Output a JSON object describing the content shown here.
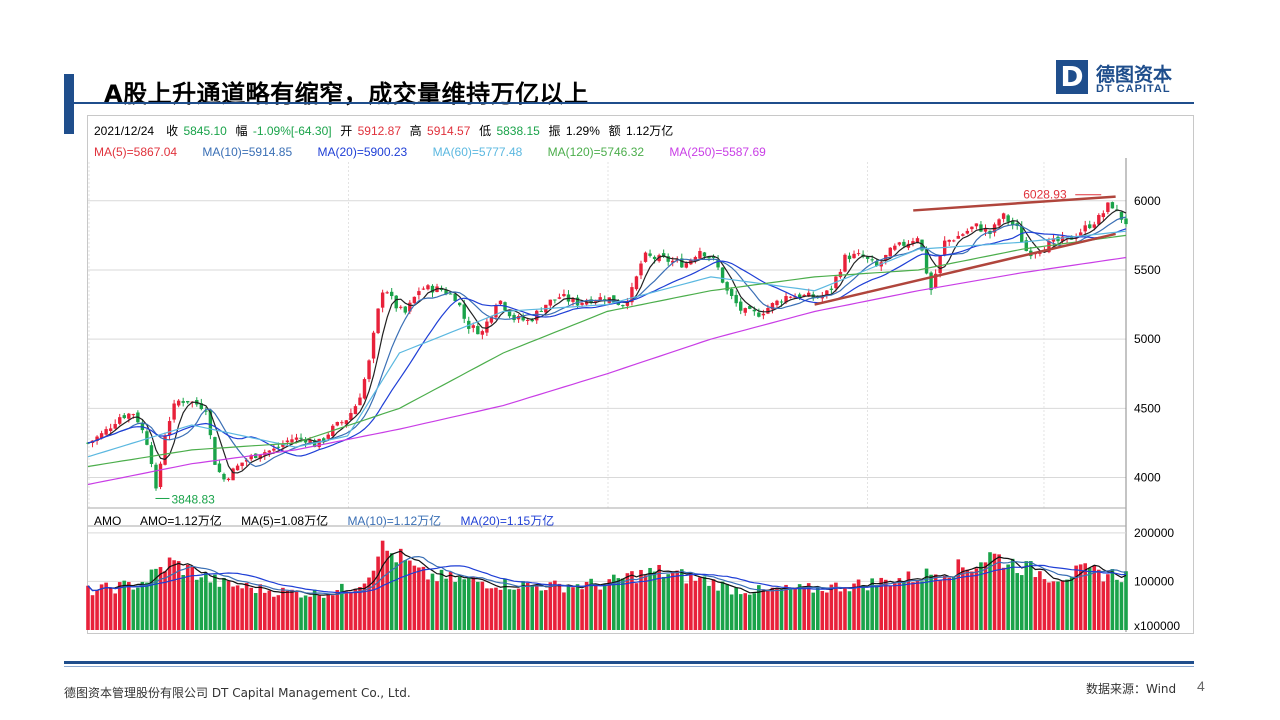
{
  "slide": {
    "title": "A股上升通道略有缩窄，成交量维持万亿以上",
    "logo_mark": "D",
    "logo_cn": "德图资本",
    "logo_en": "DT CAPITAL",
    "footer_left": "德图资本管理股份有限公司  DT Capital Management  Co., Ltd.",
    "footer_right": "数据来源：Wind",
    "page_number": "4",
    "brand_color": "#1f4e8c"
  },
  "info": {
    "date": "2021/12/24",
    "close_label": "收",
    "close_value": "5845.10",
    "change_label": "幅",
    "change_value": "-1.09%[-64.30]",
    "open_label": "开",
    "open_value": "5912.87",
    "high_label": "高",
    "high_value": "5914.57",
    "low_label": "低",
    "low_value": "5838.15",
    "amp_label": "振",
    "amp_value": "1.29%",
    "amt_label": "额",
    "amt_value": "1.12万亿"
  },
  "ma_legend": [
    {
      "text": "MA(5)=5867.04",
      "color": "#e0323c"
    },
    {
      "text": "MA(10)=5914.85",
      "color": "#3a6fb5"
    },
    {
      "text": "MA(20)=5900.23",
      "color": "#1f3fd6"
    },
    {
      "text": "MA(60)=5777.48",
      "color": "#5bb8e0"
    },
    {
      "text": "MA(120)=5746.32",
      "color": "#4cae4c"
    },
    {
      "text": "MA(250)=5587.69",
      "color": "#c93ee6"
    }
  ],
  "amo_legend": [
    {
      "text": "AMO",
      "color": "#000000"
    },
    {
      "text": "AMO=1.12万亿",
      "color": "#000000"
    },
    {
      "text": "MA(5)=1.08万亿",
      "color": "#000000"
    },
    {
      "text": "MA(10)=1.12万亿",
      "color": "#3a6fb5"
    },
    {
      "text": "MA(20)=1.15万亿",
      "color": "#1f3fd6"
    }
  ],
  "colors": {
    "up": "#e8213a",
    "down": "#1aa34a",
    "trend": "#b0453c",
    "grid": "#d9d9d9"
  },
  "chart_data": [
    {
      "type": "candlestick",
      "price_axis": {
        "ticks": [
          4000,
          4500,
          5000,
          5500,
          6000
        ],
        "tick_labels": [
          "4000",
          "4500",
          "5000",
          "5500",
          "6000"
        ],
        "ylim": [
          3780,
          6280
        ]
      },
      "annotations": [
        {
          "text": "6028.93",
          "kind": "high",
          "value": 6028.93
        },
        {
          "text": "3848.83",
          "kind": "low",
          "value": 3848.83
        }
      ],
      "trendlines": [
        {
          "name": "upper",
          "from": [
            0.795,
            5930
          ],
          "to": [
            0.99,
            6030
          ]
        },
        {
          "name": "lower",
          "from": [
            0.7,
            5250
          ],
          "to": [
            0.99,
            5760
          ]
        }
      ],
      "price_path": [
        [
          0.0,
          4250
        ],
        [
          0.015,
          4320
        ],
        [
          0.03,
          4440
        ],
        [
          0.045,
          4470
        ],
        [
          0.06,
          4200
        ],
        [
          0.065,
          3870
        ],
        [
          0.075,
          4350
        ],
        [
          0.085,
          4550
        ],
        [
          0.095,
          4560
        ],
        [
          0.105,
          4530
        ],
        [
          0.115,
          4500
        ],
        [
          0.12,
          4150
        ],
        [
          0.13,
          3980
        ],
        [
          0.14,
          4050
        ],
        [
          0.15,
          4120
        ],
        [
          0.165,
          4180
        ],
        [
          0.18,
          4200
        ],
        [
          0.195,
          4280
        ],
        [
          0.21,
          4280
        ],
        [
          0.22,
          4230
        ],
        [
          0.235,
          4350
        ],
        [
          0.25,
          4430
        ],
        [
          0.26,
          4550
        ],
        [
          0.27,
          4800
        ],
        [
          0.278,
          5150
        ],
        [
          0.285,
          5400
        ],
        [
          0.295,
          5250
        ],
        [
          0.305,
          5180
        ],
        [
          0.32,
          5370
        ],
        [
          0.34,
          5360
        ],
        [
          0.355,
          5300
        ],
        [
          0.365,
          5100
        ],
        [
          0.38,
          5050
        ],
        [
          0.395,
          5300
        ],
        [
          0.41,
          5150
        ],
        [
          0.425,
          5130
        ],
        [
          0.44,
          5250
        ],
        [
          0.455,
          5310
        ],
        [
          0.47,
          5260
        ],
        [
          0.485,
          5290
        ],
        [
          0.5,
          5300
        ],
        [
          0.515,
          5250
        ],
        [
          0.525,
          5360
        ],
        [
          0.535,
          5600
        ],
        [
          0.55,
          5580
        ],
        [
          0.565,
          5560
        ],
        [
          0.575,
          5540
        ],
        [
          0.59,
          5650
        ],
        [
          0.605,
          5550
        ],
        [
          0.615,
          5350
        ],
        [
          0.63,
          5200
        ],
        [
          0.645,
          5180
        ],
        [
          0.66,
          5250
        ],
        [
          0.675,
          5320
        ],
        [
          0.69,
          5310
        ],
        [
          0.705,
          5300
        ],
        [
          0.715,
          5350
        ],
        [
          0.73,
          5600
        ],
        [
          0.745,
          5600
        ],
        [
          0.76,
          5520
        ],
        [
          0.775,
          5650
        ],
        [
          0.79,
          5700
        ],
        [
          0.8,
          5750
        ],
        [
          0.812,
          5350
        ],
        [
          0.825,
          5700
        ],
        [
          0.84,
          5750
        ],
        [
          0.855,
          5820
        ],
        [
          0.87,
          5760
        ],
        [
          0.88,
          5900
        ],
        [
          0.895,
          5800
        ],
        [
          0.905,
          5620
        ],
        [
          0.915,
          5650
        ],
        [
          0.93,
          5700
        ],
        [
          0.945,
          5720
        ],
        [
          0.96,
          5800
        ],
        [
          0.975,
          5880
        ],
        [
          0.985,
          5990
        ],
        [
          0.992,
          5900
        ],
        [
          1.0,
          5845
        ]
      ],
      "moving_averages": {
        "MA250": [
          [
            0.0,
            3950
          ],
          [
            0.1,
            4100
          ],
          [
            0.2,
            4200
          ],
          [
            0.3,
            4350
          ],
          [
            0.4,
            4520
          ],
          [
            0.5,
            4750
          ],
          [
            0.6,
            5000
          ],
          [
            0.7,
            5200
          ],
          [
            0.8,
            5350
          ],
          [
            0.9,
            5480
          ],
          [
            1.0,
            5590
          ]
        ],
        "MA120": [
          [
            0.0,
            4080
          ],
          [
            0.1,
            4200
          ],
          [
            0.2,
            4250
          ],
          [
            0.3,
            4500
          ],
          [
            0.4,
            4900
          ],
          [
            0.5,
            5200
          ],
          [
            0.6,
            5350
          ],
          [
            0.7,
            5450
          ],
          [
            0.8,
            5500
          ],
          [
            0.9,
            5650
          ],
          [
            1.0,
            5750
          ]
        ],
        "MA60": [
          [
            0.0,
            4150
          ],
          [
            0.1,
            4380
          ],
          [
            0.2,
            4220
          ],
          [
            0.25,
            4300
          ],
          [
            0.3,
            4900
          ],
          [
            0.4,
            5200
          ],
          [
            0.5,
            5250
          ],
          [
            0.6,
            5450
          ],
          [
            0.7,
            5350
          ],
          [
            0.8,
            5650
          ],
          [
            0.9,
            5700
          ],
          [
            1.0,
            5780
          ]
        ]
      }
    },
    {
      "type": "bar",
      "name": "AMO",
      "volume_axis": {
        "ticks": [
          100000,
          200000
        ],
        "tick_labels": [
          "100000",
          "200000"
        ],
        "unit_label": "x100000",
        "ylim": [
          0,
          210000
        ]
      },
      "volume_path": [
        [
          0.0,
          80000
        ],
        [
          0.05,
          95000
        ],
        [
          0.08,
          140000
        ],
        [
          0.1,
          120000
        ],
        [
          0.13,
          95000
        ],
        [
          0.18,
          80000
        ],
        [
          0.22,
          75000
        ],
        [
          0.25,
          85000
        ],
        [
          0.27,
          110000
        ],
        [
          0.28,
          170000
        ],
        [
          0.3,
          150000
        ],
        [
          0.32,
          115000
        ],
        [
          0.35,
          105000
        ],
        [
          0.4,
          95000
        ],
        [
          0.45,
          90000
        ],
        [
          0.5,
          95000
        ],
        [
          0.52,
          110000
        ],
        [
          0.55,
          120000
        ],
        [
          0.6,
          100000
        ],
        [
          0.62,
          85000
        ],
        [
          0.65,
          80000
        ],
        [
          0.7,
          85000
        ],
        [
          0.75,
          95000
        ],
        [
          0.8,
          110000
        ],
        [
          0.83,
          125000
        ],
        [
          0.85,
          130000
        ],
        [
          0.87,
          155000
        ],
        [
          0.9,
          130000
        ],
        [
          0.93,
          110000
        ],
        [
          0.96,
          120000
        ],
        [
          1.0,
          112000
        ]
      ]
    }
  ]
}
